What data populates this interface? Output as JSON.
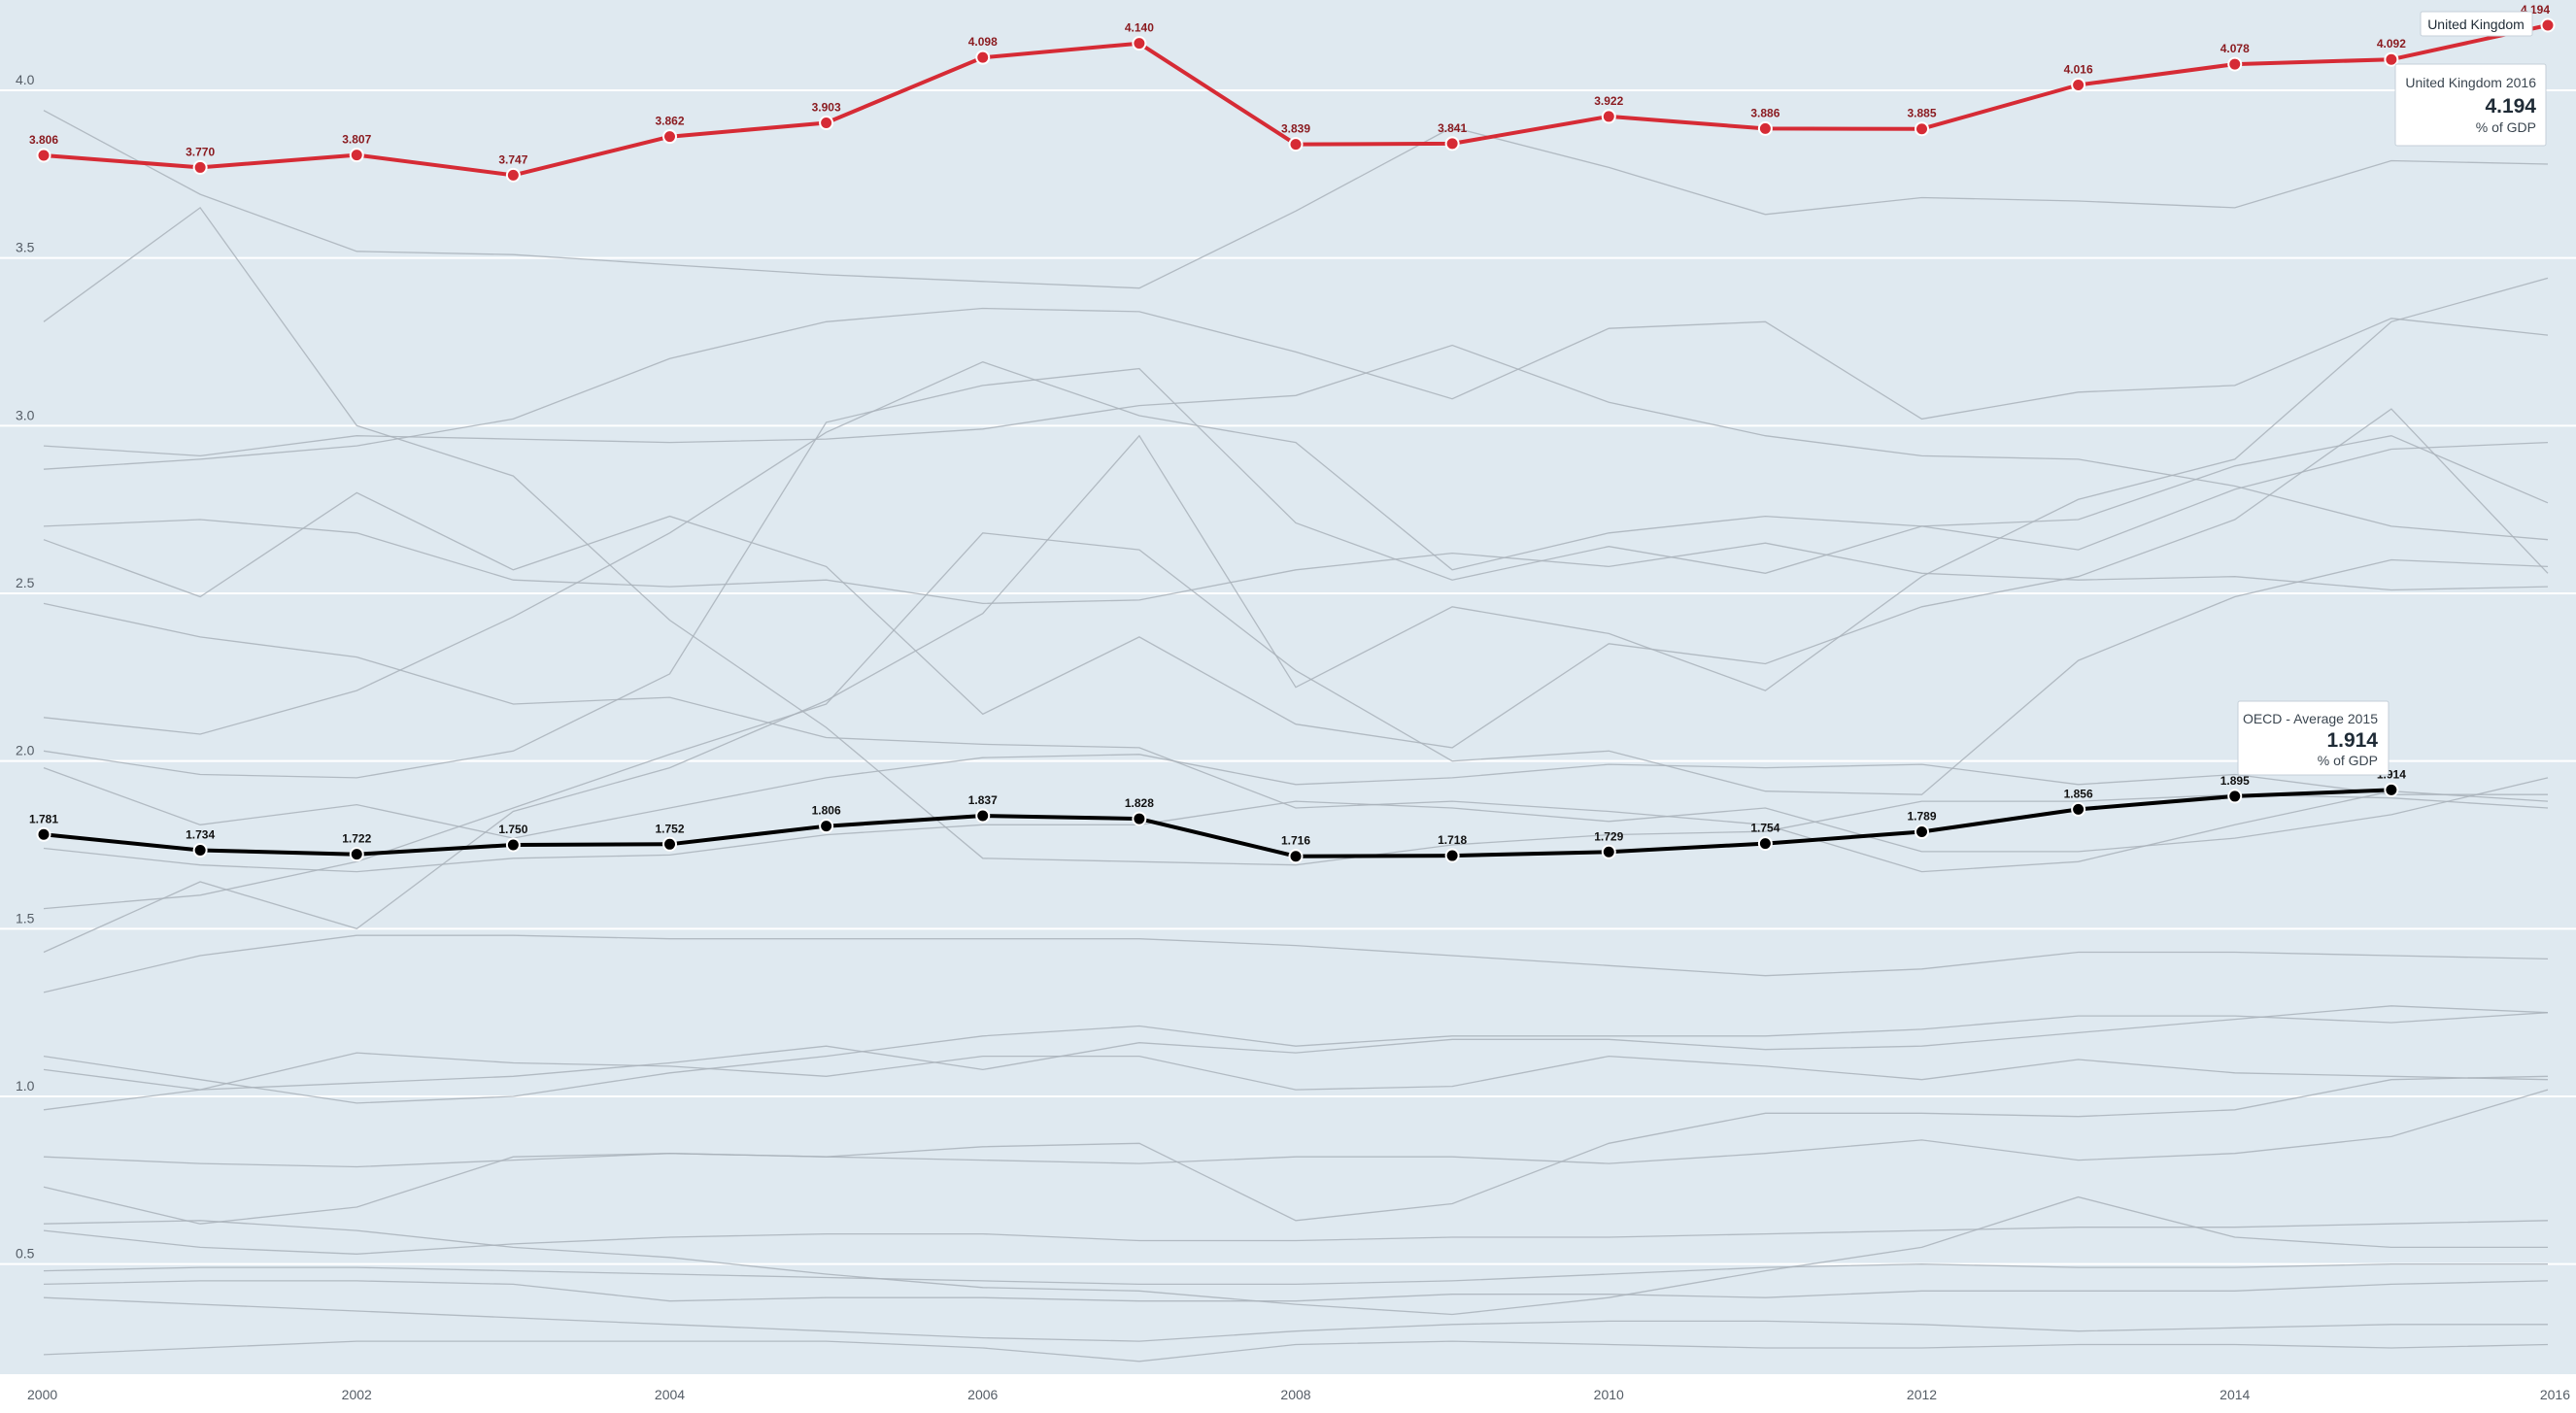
{
  "chart_data": {
    "type": "line",
    "x": [
      2000,
      2001,
      2002,
      2003,
      2004,
      2005,
      2006,
      2007,
      2008,
      2009,
      2010,
      2011,
      2012,
      2013,
      2014,
      2015,
      2016
    ],
    "x_ticks": [
      "2000",
      "2002",
      "2004",
      "2006",
      "2008",
      "2010",
      "2012",
      "2014",
      "2016"
    ],
    "y_ticks": [
      "0.5",
      "1.0",
      "1.5",
      "2.0",
      "2.5",
      "3.0",
      "3.5",
      "4.0"
    ],
    "ylim": [
      0.2,
      4.25
    ],
    "grid": true,
    "colors": {
      "background": "#dfe9f0",
      "grid": "#ffffff",
      "context": "#a9b2ba",
      "highlight": "#d62b35",
      "average": "#000000"
    },
    "highlighted_series": [
      {
        "name": "United Kingdom",
        "color": "#d62b35",
        "values": [
          3.806,
          3.77,
          3.807,
          3.747,
          3.862,
          3.903,
          4.098,
          4.14,
          3.839,
          3.841,
          3.922,
          3.886,
          3.885,
          4.016,
          4.078,
          4.092,
          4.194
        ],
        "labels": [
          "3.806",
          "3.770",
          "3.807",
          "3.747",
          "3.862",
          "3.903",
          "4.098",
          "4.140",
          "3.839",
          "3.841",
          "3.922",
          "3.886",
          "3.885",
          "4.016",
          "4.078",
          "4.092",
          "4.194"
        ]
      },
      {
        "name": "OECD - Average",
        "color": "#000000",
        "values": [
          1.781,
          1.734,
          1.722,
          1.75,
          1.752,
          1.806,
          1.837,
          1.828,
          1.716,
          1.718,
          1.729,
          1.754,
          1.789,
          1.856,
          1.895,
          1.914
        ],
        "labels": [
          "1.781",
          "1.734",
          "1.722",
          "1.750",
          "1.752",
          "1.806",
          "1.837",
          "1.828",
          "1.716",
          "1.718",
          "1.729",
          "1.754",
          "1.789",
          "1.856",
          "1.895",
          "1.914"
        ]
      }
    ],
    "background_series": [
      [
        3.31,
        3.65,
        3.0,
        2.85,
        2.42,
        2.1,
        1.71,
        1.7,
        1.69,
        1.75,
        1.78,
        1.79,
        1.88,
        1.88,
        1.9,
        1.89,
        1.86
      ],
      [
        3.94,
        3.69,
        3.52,
        3.51,
        3.48,
        3.45,
        3.43,
        3.41,
        3.64,
        3.89,
        3.77,
        3.63,
        3.68,
        3.67,
        3.65,
        3.79,
        3.78
      ],
      [
        2.94,
        2.91,
        2.97,
        2.96,
        2.95,
        2.96,
        2.99,
        3.06,
        3.09,
        3.24,
        3.07,
        2.97,
        2.91,
        2.9,
        2.82,
        2.7,
        2.66
      ],
      [
        2.87,
        2.9,
        2.94,
        3.02,
        3.2,
        3.31,
        3.35,
        3.34,
        3.22,
        3.08,
        3.29,
        3.31,
        3.02,
        3.1,
        3.12,
        3.32,
        3.27
      ],
      [
        2.7,
        2.72,
        2.68,
        2.54,
        2.52,
        2.54,
        2.47,
        2.48,
        2.57,
        2.62,
        2.58,
        2.65,
        2.56,
        2.54,
        2.55,
        2.51,
        2.52
      ],
      [
        2.66,
        2.49,
        2.8,
        2.57,
        2.73,
        2.58,
        2.14,
        2.37,
        2.11,
        2.04,
        2.35,
        2.29,
        2.46,
        2.55,
        2.72,
        3.05,
        2.56
      ],
      [
        2.47,
        2.37,
        2.31,
        2.17,
        2.19,
        2.07,
        2.05,
        2.04,
        1.86,
        1.88,
        1.85,
        1.81,
        1.67,
        1.7,
        1.81,
        1.91,
        1.88
      ],
      [
        2.13,
        2.08,
        2.21,
        2.43,
        2.68,
        2.98,
        3.19,
        3.03,
        2.95,
        2.57,
        2.68,
        2.73,
        2.7,
        2.72,
        2.88,
        2.97,
        2.77
      ],
      [
        2.03,
        1.96,
        1.95,
        2.03,
        2.26,
        3.01,
        3.12,
        3.17,
        2.71,
        2.54,
        2.64,
        2.56,
        2.7,
        2.63,
        2.81,
        2.93,
        2.95
      ],
      [
        1.98,
        1.81,
        1.87,
        1.77,
        1.86,
        1.95,
        2.01,
        2.02,
        1.93,
        1.95,
        1.99,
        1.98,
        1.99,
        1.93,
        1.96,
        1.9,
        1.9
      ],
      [
        1.74,
        1.69,
        1.67,
        1.71,
        1.72,
        1.78,
        1.81,
        1.81,
        1.88,
        1.86,
        1.82,
        1.86,
        1.73,
        1.73,
        1.77,
        1.84,
        1.95
      ],
      [
        1.56,
        1.6,
        1.7,
        1.86,
        2.02,
        2.17,
        2.68,
        2.63,
        2.27,
        2.0,
        2.03,
        1.91,
        1.9,
        2.3,
        2.49,
        2.6,
        2.58
      ],
      [
        1.43,
        1.64,
        1.5,
        1.85,
        1.98,
        2.18,
        2.44,
        2.97,
        2.22,
        2.46,
        2.38,
        2.21,
        2.55,
        2.78,
        2.9,
        3.31,
        3.44
      ],
      [
        1.31,
        1.42,
        1.48,
        1.48,
        1.47,
        1.47,
        1.47,
        1.47,
        1.45,
        1.42,
        1.39,
        1.36,
        1.38,
        1.43,
        1.43,
        1.42,
        1.41
      ],
      [
        1.12,
        1.05,
        0.98,
        1.0,
        1.07,
        1.12,
        1.18,
        1.21,
        1.15,
        1.18,
        1.18,
        1.18,
        1.2,
        1.24,
        1.24,
        1.22,
        1.25
      ],
      [
        1.08,
        1.02,
        1.04,
        1.06,
        1.1,
        1.15,
        1.08,
        1.16,
        1.13,
        1.17,
        1.17,
        1.14,
        1.15,
        1.19,
        1.23,
        1.27,
        1.25
      ],
      [
        0.96,
        1.02,
        1.13,
        1.1,
        1.09,
        1.06,
        1.12,
        1.12,
        1.02,
        1.03,
        1.12,
        1.09,
        1.05,
        1.11,
        1.07,
        1.06,
        1.05
      ],
      [
        0.82,
        0.8,
        0.79,
        0.81,
        0.83,
        0.82,
        0.81,
        0.8,
        0.82,
        0.82,
        0.8,
        0.83,
        0.87,
        0.81,
        0.83,
        0.88,
        1.02
      ],
      [
        0.73,
        0.62,
        0.67,
        0.82,
        0.83,
        0.82,
        0.85,
        0.86,
        0.63,
        0.68,
        0.86,
        0.95,
        0.95,
        0.94,
        0.96,
        1.05,
        1.06
      ],
      [
        0.62,
        0.63,
        0.6,
        0.55,
        0.52,
        0.47,
        0.43,
        0.42,
        0.38,
        0.35,
        0.4,
        0.48,
        0.55,
        0.7,
        0.58,
        0.55,
        0.55
      ],
      [
        0.6,
        0.55,
        0.53,
        0.56,
        0.58,
        0.59,
        0.59,
        0.57,
        0.57,
        0.58,
        0.58,
        0.59,
        0.6,
        0.61,
        0.61,
        0.62,
        0.63
      ],
      [
        0.48,
        0.49,
        0.49,
        0.48,
        0.47,
        0.46,
        0.45,
        0.44,
        0.44,
        0.45,
        0.47,
        0.49,
        0.5,
        0.49,
        0.49,
        0.5,
        0.5
      ],
      [
        0.44,
        0.45,
        0.45,
        0.44,
        0.39,
        0.4,
        0.4,
        0.39,
        0.39,
        0.41,
        0.41,
        0.4,
        0.42,
        0.42,
        0.42,
        0.44,
        0.45
      ],
      [
        0.4,
        0.38,
        0.36,
        0.34,
        0.32,
        0.3,
        0.28,
        0.27,
        0.3,
        0.32,
        0.33,
        0.33,
        0.32,
        0.3,
        0.31,
        0.32,
        0.32
      ],
      [
        0.23,
        0.25,
        0.27,
        0.27,
        0.27,
        0.27,
        0.25,
        0.21,
        0.26,
        0.27,
        0.26,
        0.25,
        0.25,
        0.26,
        0.26,
        0.25,
        0.26
      ]
    ],
    "tooltips": [
      {
        "title": "United Kingdom 2016",
        "value": "4.194",
        "unit": "% of GDP"
      },
      {
        "title": "OECD - Average 2015",
        "value": "1.914",
        "unit": "% of GDP"
      }
    ],
    "series_tag": "United Kingdom"
  }
}
